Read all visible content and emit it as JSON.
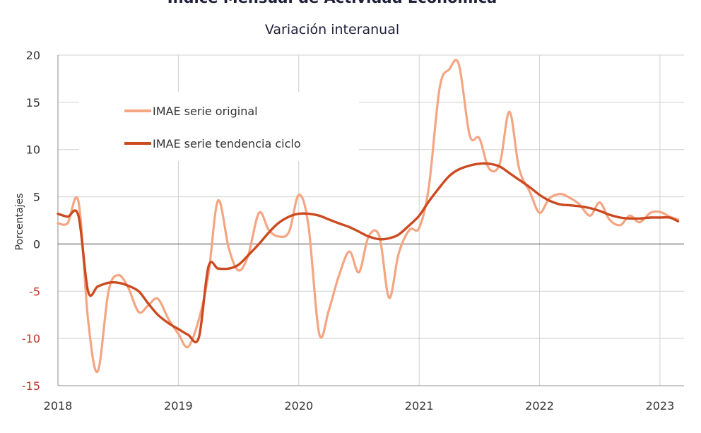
{
  "chart_data": {
    "type": "line",
    "title": "Índice Mensual de  Actividad Económica",
    "subtitle": "Variación interanual",
    "xlabel": "",
    "ylabel": "Porcentajes",
    "ylim": [
      -15,
      20
    ],
    "yticks": [
      20,
      15,
      10,
      5,
      0,
      -5,
      -10,
      -15
    ],
    "xlim": [
      2018,
      2023.2
    ],
    "xticks": [
      2018,
      2019,
      2020,
      2021,
      2022,
      2023
    ],
    "x_tick_labels": [
      "2018",
      "2019",
      "2020",
      "2021",
      "2022",
      "2023"
    ],
    "grid": true,
    "legend_position": "upper-left",
    "series": [
      {
        "name": "IMAE serie original",
        "color": "#f4a582",
        "x": [
          2018.0,
          2018.08,
          2018.17,
          2018.25,
          2018.33,
          2018.42,
          2018.5,
          2018.58,
          2018.67,
          2018.75,
          2018.83,
          2018.92,
          2019.0,
          2019.08,
          2019.17,
          2019.25,
          2019.33,
          2019.42,
          2019.5,
          2019.58,
          2019.67,
          2019.75,
          2019.83,
          2019.92,
          2020.0,
          2020.08,
          2020.17,
          2020.25,
          2020.33,
          2020.42,
          2020.5,
          2020.58,
          2020.67,
          2020.75,
          2020.83,
          2020.92,
          2021.0,
          2021.08,
          2021.17,
          2021.25,
          2021.33,
          2021.42,
          2021.5,
          2021.58,
          2021.67,
          2021.75,
          2021.83,
          2021.92,
          2022.0,
          2022.08,
          2022.17,
          2022.25,
          2022.33,
          2022.42,
          2022.5,
          2022.58,
          2022.67,
          2022.75,
          2022.83,
          2022.92,
          2023.0,
          2023.08,
          2023.15
        ],
        "values": [
          2.2,
          2.2,
          4.5,
          -8.0,
          -13.5,
          -5.0,
          -3.3,
          -4.5,
          -7.2,
          -6.5,
          -5.8,
          -8.0,
          -9.5,
          -10.9,
          -8.0,
          -3.2,
          4.6,
          -0.5,
          -2.8,
          -1.2,
          3.3,
          1.5,
          0.8,
          1.3,
          5.2,
          2.0,
          -9.5,
          -7.0,
          -3.5,
          -0.8,
          -3.0,
          0.8,
          0.8,
          -5.7,
          -1.0,
          1.5,
          1.7,
          6.0,
          16.5,
          18.5,
          19.0,
          11.5,
          11.2,
          8.0,
          8.5,
          14.0,
          8.0,
          5.5,
          3.3,
          4.8,
          5.3,
          4.9,
          4.2,
          3.0,
          4.4,
          2.6,
          2.0,
          3.0,
          2.3,
          3.3,
          3.4,
          2.9,
          2.6
        ]
      },
      {
        "name": "IMAE serie  tendencia ciclo",
        "color": "#cc4a1f",
        "x": [
          2018.0,
          2018.08,
          2018.17,
          2018.25,
          2018.33,
          2018.42,
          2018.5,
          2018.58,
          2018.67,
          2018.75,
          2018.83,
          2018.92,
          2019.0,
          2019.08,
          2019.17,
          2019.25,
          2019.33,
          2019.42,
          2019.5,
          2019.58,
          2019.67,
          2019.75,
          2019.83,
          2019.92,
          2020.0,
          2020.08,
          2020.17,
          2020.25,
          2020.33,
          2020.42,
          2020.5,
          2020.58,
          2020.67,
          2020.75,
          2020.83,
          2020.92,
          2021.0,
          2021.08,
          2021.17,
          2021.25,
          2021.33,
          2021.42,
          2021.5,
          2021.58,
          2021.67,
          2021.75,
          2021.83,
          2021.92,
          2022.0,
          2022.08,
          2022.17,
          2022.25,
          2022.33,
          2022.42,
          2022.5,
          2022.58,
          2022.67,
          2022.75,
          2022.83,
          2022.92,
          2023.0,
          2023.08,
          2023.15
        ],
        "values": [
          3.2,
          2.9,
          3.0,
          -5.0,
          -4.5,
          -4.1,
          -4.1,
          -4.4,
          -5.0,
          -6.3,
          -7.5,
          -8.4,
          -9.0,
          -9.6,
          -9.9,
          -2.4,
          -2.6,
          -2.6,
          -2.2,
          -1.2,
          0.0,
          1.2,
          2.2,
          2.9,
          3.2,
          3.2,
          3.0,
          2.6,
          2.2,
          1.8,
          1.3,
          0.8,
          0.5,
          0.6,
          1.0,
          2.0,
          3.0,
          4.5,
          6.0,
          7.2,
          7.9,
          8.3,
          8.5,
          8.5,
          8.2,
          7.5,
          6.8,
          6.0,
          5.2,
          4.6,
          4.2,
          4.1,
          4.0,
          3.8,
          3.5,
          3.1,
          2.8,
          2.7,
          2.7,
          2.8,
          2.8,
          2.8,
          2.4
        ]
      }
    ]
  }
}
